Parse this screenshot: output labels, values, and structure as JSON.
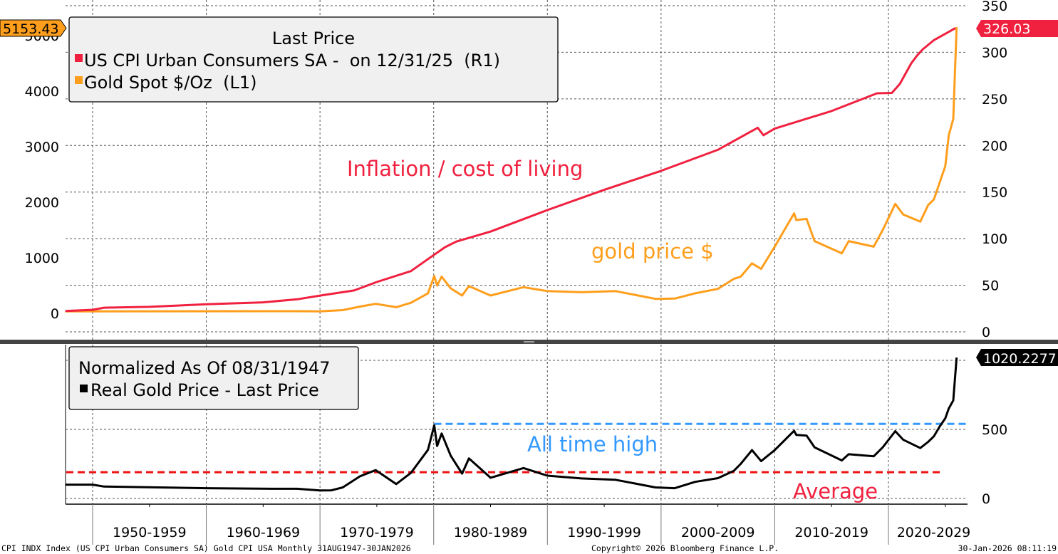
{
  "chart_data": [
    {
      "type": "line",
      "panel": "top",
      "title": "Last Price",
      "legend_placement": "top-left",
      "grid": true,
      "x_range": [
        "1947-08",
        "2026-01"
      ],
      "y_left": {
        "series": "Gold Spot $/Oz",
        "ticks": [
          0,
          1000,
          2000,
          3000,
          4000,
          5000
        ],
        "range": [
          -300,
          5650
        ]
      },
      "y_right": {
        "series": "US CPI Urban Consumers SA",
        "ticks": [
          0,
          50,
          100,
          150,
          200,
          250,
          300,
          350
        ],
        "range": [
          0,
          350
        ]
      },
      "series": [
        {
          "name": "US CPI Urban Consumers SA - on 12/31/25 (R1)",
          "axis": "right",
          "color": "#f0213f",
          "last_value": "326.03",
          "x": [
            1947.6,
            1950,
            1951,
            1955,
            1960,
            1965,
            1968,
            1970,
            1973,
            1975,
            1978,
            1980,
            1981,
            1982,
            1985,
            1990,
            1995,
            2000,
            2005,
            2008.5,
            2009,
            2010,
            2015,
            2019,
            2020.3,
            2021,
            2022,
            2022.5,
            2023,
            2024,
            2025.9
          ],
          "values": [
            22.3,
            23.6,
            25.9,
            26.8,
            29.6,
            31.6,
            34.9,
            38.9,
            44.4,
            53.5,
            65.2,
            82.4,
            90.9,
            96.9,
            107.6,
            130.7,
            152.4,
            172.8,
            195.3,
            219.0,
            211.0,
            218.1,
            237.0,
            256.0,
            256.4,
            266.0,
            288.0,
            296.2,
            303.0,
            313.0,
            326.03
          ]
        },
        {
          "name": "Gold Spot $/Oz (L1)",
          "axis": "left",
          "color": "#fe9e1c",
          "last_value": "5153.43",
          "x": [
            1947.6,
            1968,
            1970,
            1972,
            1973.5,
            1974.9,
            1976.7,
            1978,
            1979.5,
            1980.05,
            1980.3,
            1980.7,
            1981.5,
            1982.5,
            1983.1,
            1985,
            1987.9,
            1990,
            1993,
            1996,
            1999.5,
            2001.2,
            2003,
            2005,
            2006.4,
            2007,
            2008,
            2008.8,
            2010,
            2011.7,
            2011.9,
            2012.8,
            2013.5,
            2015.9,
            2016.5,
            2018.7,
            2019.5,
            2020.6,
            2021.3,
            2022.8,
            2023.5,
            2024,
            2024.5,
            2025,
            2025.3,
            2025.7,
            2026.0
          ],
          "values": [
            35,
            38,
            36,
            58,
            120,
            170,
            110,
            190,
            360,
            670,
            500,
            660,
            450,
            320,
            490,
            320,
            470,
            400,
            380,
            400,
            260,
            265,
            360,
            440,
            620,
            660,
            900,
            800,
            1200,
            1800,
            1680,
            1700,
            1300,
            1080,
            1300,
            1200,
            1500,
            1970,
            1780,
            1650,
            1950,
            2050,
            2350,
            2650,
            3200,
            3500,
            5153.43
          ]
        }
      ],
      "annotations": [
        "Inflation / cost of living",
        "gold price $"
      ]
    },
    {
      "type": "line",
      "panel": "bottom",
      "title": "Normalized As Of 08/31/1947",
      "legend_placement": "top-left",
      "grid": true,
      "x_range": [
        "1947-08",
        "2026-01"
      ],
      "y_right": {
        "ticks": [
          0,
          500
        ],
        "range": [
          -40,
          1060
        ]
      },
      "series": [
        {
          "name": "Real Gold Price - Last Price",
          "color": "#000000",
          "last_value": "1020.2277",
          "x": [
            1947.6,
            1950,
            1951,
            1960,
            1966,
            1968,
            1970,
            1971,
            1972,
            1973.5,
            1974.9,
            1976.7,
            1978,
            1979.5,
            1980.05,
            1980.3,
            1980.7,
            1981.5,
            1982.5,
            1983.1,
            1985,
            1987.9,
            1990,
            1993,
            1996,
            1999.5,
            2001.2,
            2003,
            2005,
            2006.4,
            2007,
            2008,
            2008.8,
            2010,
            2011.7,
            2011.9,
            2012.8,
            2013.5,
            2015.9,
            2016.5,
            2018.7,
            2019.5,
            2020.6,
            2021.3,
            2022.8,
            2023.5,
            2024,
            2024.5,
            2025,
            2025.3,
            2025.7,
            2026.0
          ],
          "values": [
            100,
            100,
            86,
            74,
            70,
            70,
            58,
            59,
            80,
            160,
            205,
            104,
            185,
            352,
            530,
            380,
            470,
            310,
            180,
            290,
            150,
            220,
            165,
            145,
            135,
            80,
            74,
            120,
            147,
            200,
            250,
            350,
            270,
            350,
            490,
            460,
            455,
            370,
            275,
            320,
            305,
            370,
            487,
            425,
            365,
            410,
            450,
            520,
            580,
            650,
            710,
            1020.2277
          ]
        }
      ],
      "reference_lines": [
        {
          "label": "All time high",
          "value": 540,
          "color": "#3399ff",
          "style": "dashed",
          "x_start": 1980.05
        },
        {
          "label": "Average",
          "value": 190,
          "color": "#f0213f",
          "style": "dashed"
        }
      ]
    }
  ],
  "x_axis": {
    "labels": [
      "1950-1959",
      "1960-1969",
      "1970-1979",
      "1980-1989",
      "1990-1999",
      "2000-2009",
      "2010-2019",
      "2020-2029"
    ]
  },
  "legend_top": {
    "title": "Last Price",
    "items": [
      {
        "label": "US CPI Urban Consumers SA -  on 12/31/25  (R1)",
        "color": "#f0213f"
      },
      {
        "label": "Gold Spot $/Oz  (L1)",
        "color": "#fe9e1c"
      }
    ]
  },
  "legend_bottom": {
    "title": "Normalized As Of 08/31/1947",
    "items": [
      {
        "label": "Real Gold Price - Last Price",
        "color": "#000000"
      }
    ]
  },
  "badges": {
    "gold_last": "5153.43",
    "cpi_last": "326.03",
    "real_gold_last": "1020.2277"
  },
  "annotations": {
    "inflation": "Inflation / cost of living",
    "gold": "gold price $",
    "ath": "All time high",
    "average": "Average"
  },
  "footer": {
    "left": "CPI INDX Index (US CPI Urban Consumers SA) Gold CPI USA Monthly 31AUG1947-30JAN2026",
    "center": "Copyright© 2026 Bloomberg Finance L.P.",
    "right": "30-Jan-2026 08:11:19"
  },
  "colors": {
    "cpi": "#f0213f",
    "gold": "#fe9e1c",
    "real_gold": "#000000",
    "ath_line": "#3399ff",
    "avg_line": "#ee1111",
    "legend_bg": "#f0f0f0",
    "separator": "#444444"
  }
}
